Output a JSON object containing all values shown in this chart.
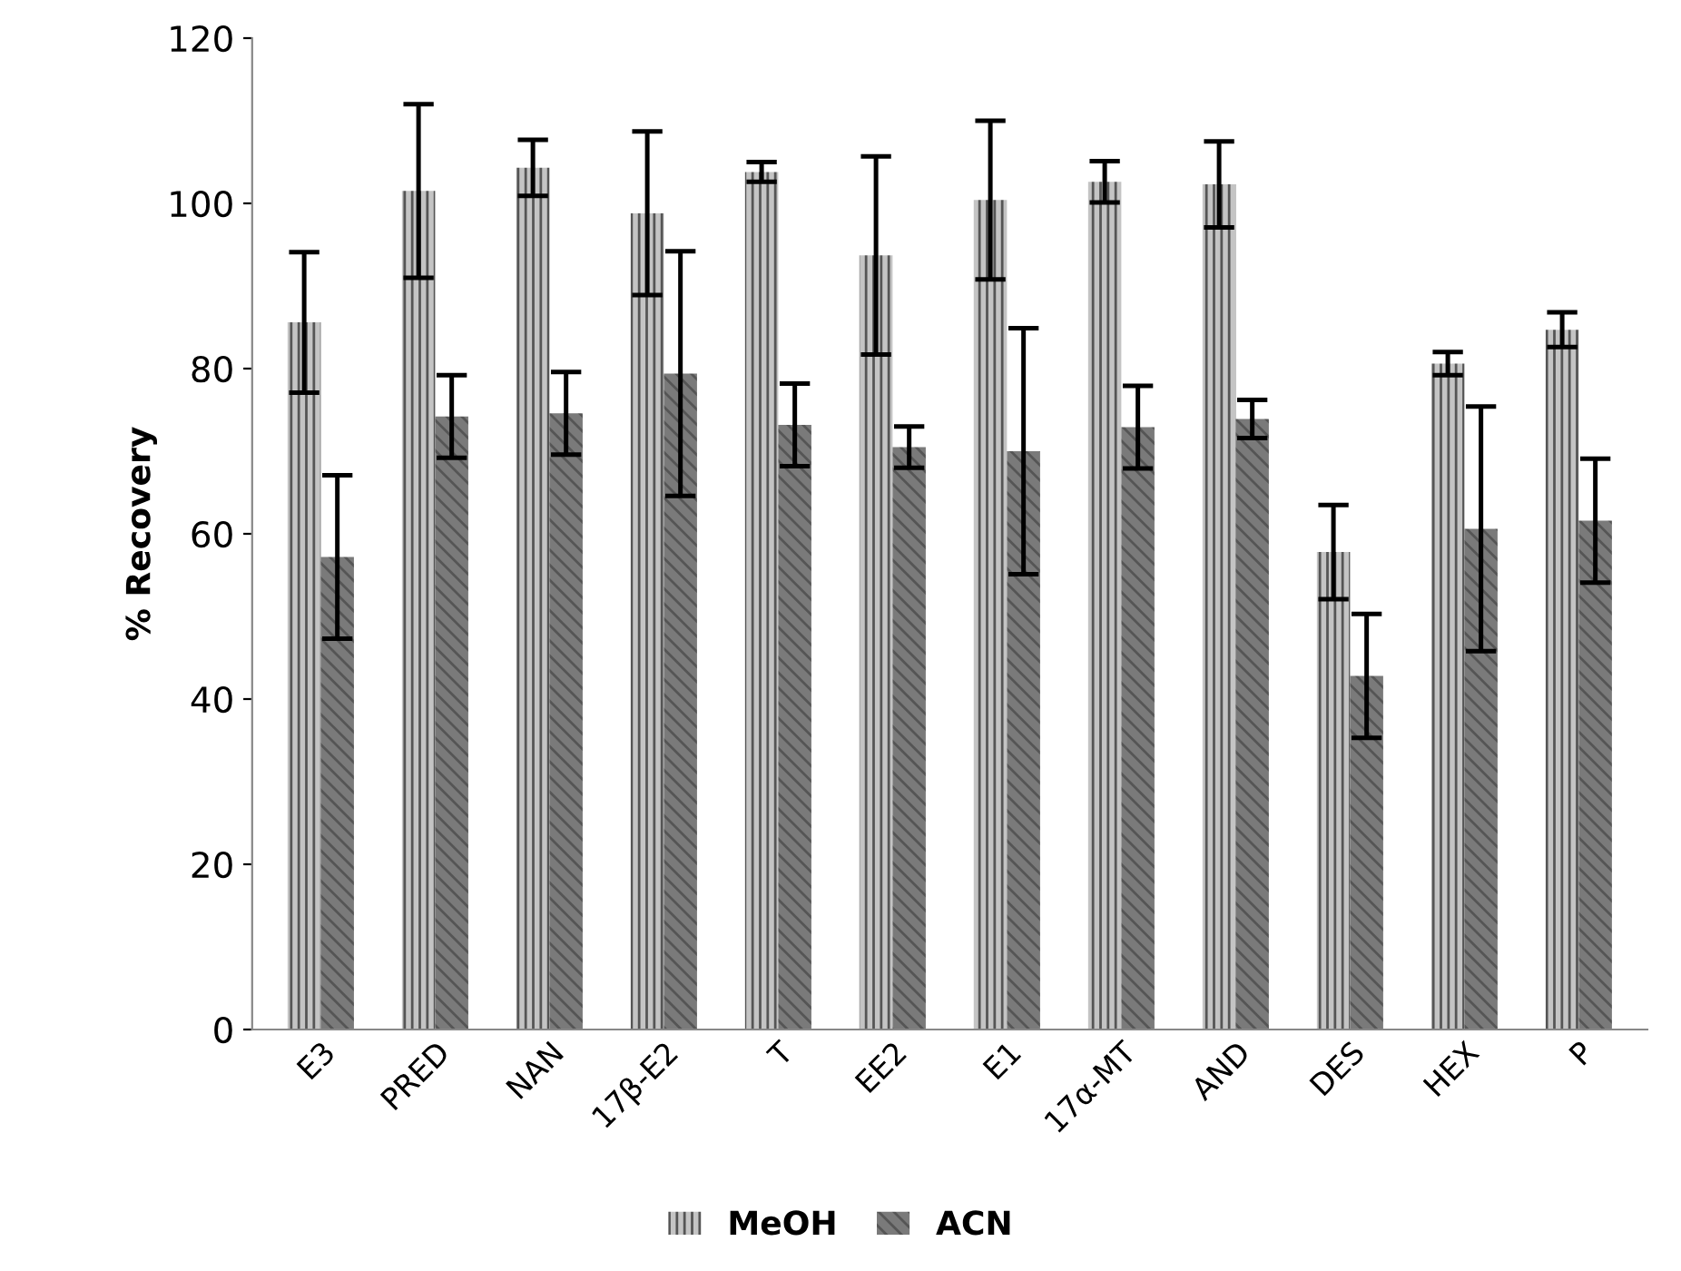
{
  "chart_data": {
    "type": "bar",
    "ylabel": "% Recovery",
    "categories": [
      "E3",
      "PRED",
      "NAN",
      "17β-E2",
      "T",
      "EE2",
      "E1",
      "17α-MT",
      "AND",
      "DES",
      "HEX",
      "P"
    ],
    "series": [
      {
        "name": "MeOH",
        "color": "#c4c4c4",
        "values": [
          85.6,
          101.5,
          104.3,
          98.8,
          103.8,
          93.7,
          100.4,
          102.6,
          102.3,
          57.8,
          80.6,
          84.7
        ],
        "errors": [
          8.5,
          10.5,
          3.4,
          9.9,
          1.2,
          12,
          9.6,
          2.5,
          5.2,
          5.7,
          1.4,
          2.1
        ]
      },
      {
        "name": "ACN",
        "color": "#7a7a7a",
        "values": [
          57.2,
          74.2,
          74.6,
          79.4,
          73.2,
          70.5,
          70.0,
          72.9,
          73.9,
          42.8,
          60.6,
          61.6
        ],
        "errors": [
          9.9,
          5,
          5,
          14.8,
          5,
          2.5,
          14.9,
          5,
          2.3,
          7.5,
          14.8,
          7.5
        ]
      }
    ],
    "ylim": [
      0,
      120
    ],
    "yticks": [
      0,
      20,
      40,
      60,
      80,
      100,
      120
    ],
    "grid": false,
    "legend": "bottom"
  }
}
